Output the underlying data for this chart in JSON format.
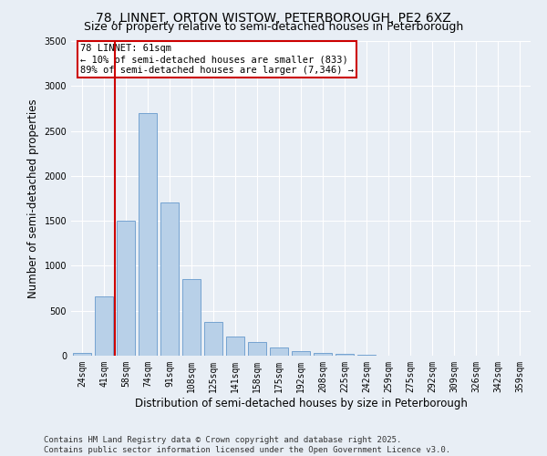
{
  "title": "78, LINNET, ORTON WISTOW, PETERBOROUGH, PE2 6XZ",
  "subtitle": "Size of property relative to semi-detached houses in Peterborough",
  "xlabel": "Distribution of semi-detached houses by size in Peterborough",
  "ylabel": "Number of semi-detached properties",
  "categories": [
    "24sqm",
    "41sqm",
    "58sqm",
    "74sqm",
    "91sqm",
    "108sqm",
    "125sqm",
    "141sqm",
    "158sqm",
    "175sqm",
    "192sqm",
    "208sqm",
    "225sqm",
    "242sqm",
    "259sqm",
    "275sqm",
    "292sqm",
    "309sqm",
    "326sqm",
    "342sqm",
    "359sqm"
  ],
  "values": [
    30,
    660,
    1500,
    2700,
    1700,
    850,
    375,
    210,
    150,
    90,
    55,
    30,
    25,
    10,
    5,
    2,
    1,
    0,
    0,
    0,
    0
  ],
  "bar_color": "#b8d0e8",
  "bar_edge_color": "#6699cc",
  "vline_x_data": 1.5,
  "vline_color": "#cc0000",
  "annotation_title": "78 LINNET: 61sqm",
  "annotation_line1": "← 10% of semi-detached houses are smaller (833)",
  "annotation_line2": "89% of semi-detached houses are larger (7,346) →",
  "annotation_box_color": "#cc0000",
  "ylim": [
    0,
    3500
  ],
  "yticks": [
    0,
    500,
    1000,
    1500,
    2000,
    2500,
    3000,
    3500
  ],
  "footer_line1": "Contains HM Land Registry data © Crown copyright and database right 2025.",
  "footer_line2": "Contains public sector information licensed under the Open Government Licence v3.0.",
  "bg_color": "#e8eef5",
  "plot_bg_color": "#e8eef5",
  "title_fontsize": 10,
  "subtitle_fontsize": 9,
  "axis_label_fontsize": 8.5,
  "tick_fontsize": 7,
  "footer_fontsize": 6.5,
  "annotation_fontsize": 7.5
}
